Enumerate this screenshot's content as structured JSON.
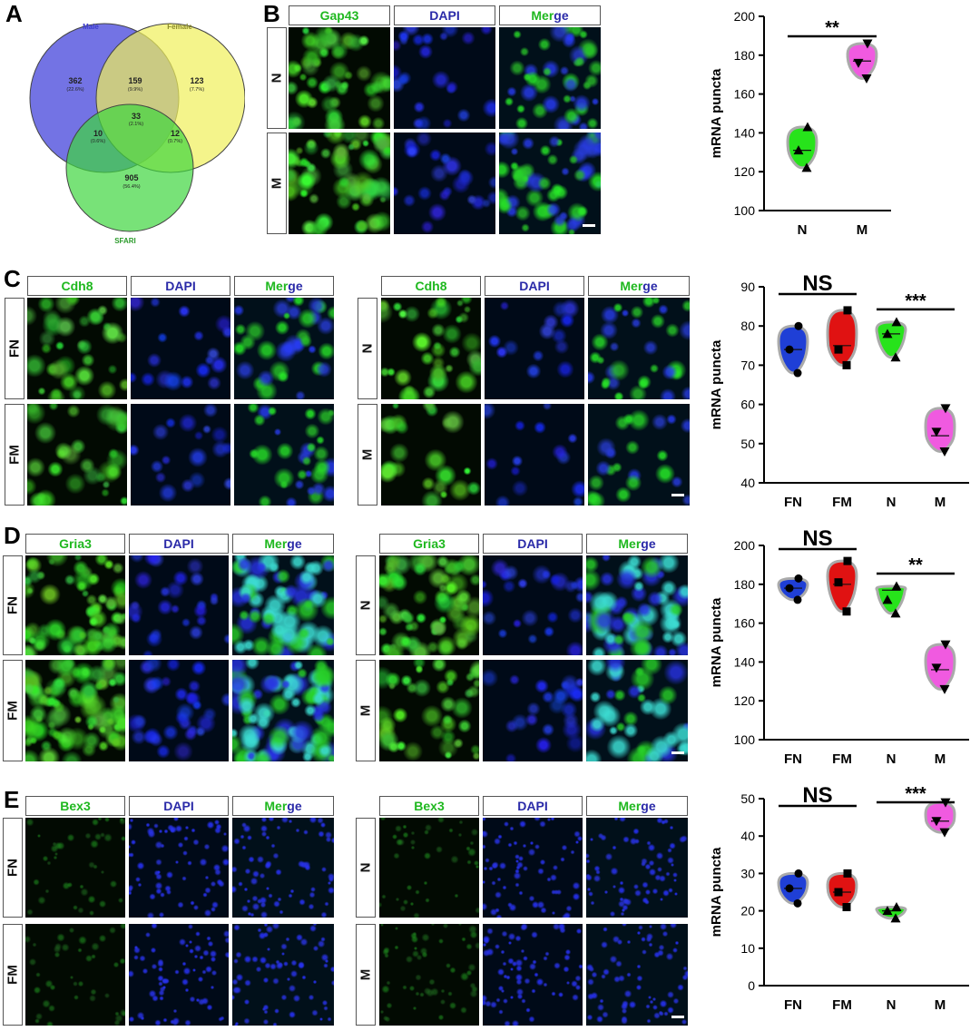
{
  "panels": {
    "A": {
      "letter": "A"
    },
    "B": {
      "letter": "B"
    },
    "C": {
      "letter": "C"
    },
    "D": {
      "letter": "D"
    },
    "E": {
      "letter": "E"
    }
  },
  "venn": {
    "male_label": "Male",
    "female_label": "Female",
    "sfari_label": "SFARI",
    "regions": [
      {
        "count": "362",
        "pct": "(22.6%)"
      },
      {
        "count": "159",
        "pct": "(9.9%)"
      },
      {
        "count": "123",
        "pct": "(7.7%)"
      },
      {
        "count": "33",
        "pct": "(2.1%)"
      },
      {
        "count": "10",
        "pct": "(0.6%)"
      },
      {
        "count": "12",
        "pct": "(0.7%)"
      },
      {
        "count": "905",
        "pct": "(56.4%)"
      }
    ],
    "colors": {
      "male": "#5a5adf",
      "female": "#f0ef5a",
      "sfari": "#3fd63f"
    }
  },
  "channels": {
    "dapi": "DAPI",
    "merge_a": "Mer",
    "merge_b": "ge"
  },
  "genes": {
    "gap43": "Gap43",
    "cdh8": "Cdh8",
    "gria3": "Gria3",
    "bex3": "Bex3"
  },
  "groups": {
    "N": "N",
    "M": "M",
    "FN": "FN",
    "FM": "FM"
  },
  "colors": {
    "FN": "#1f3fd6",
    "FM": "#e01212",
    "N": "#27e31b",
    "M": "#f05ae0",
    "green": "#1fb81f",
    "blue": "#2a2aa8"
  },
  "chart_data": [
    {
      "type": "violin",
      "panel": "B",
      "categories": [
        "N",
        "M"
      ],
      "ylabel": "mRNA puncta",
      "ylim": [
        100,
        200
      ],
      "yticks": [
        100,
        120,
        140,
        160,
        180,
        200
      ],
      "series": [
        {
          "group": "N",
          "values": [
            122,
            131,
            143
          ],
          "median": 131
        },
        {
          "group": "M",
          "values": [
            168,
            176,
            186
          ],
          "median": 177
        }
      ],
      "annotations": [
        {
          "text": "**",
          "from": "N",
          "to": "M"
        }
      ]
    },
    {
      "type": "violin",
      "panel": "C",
      "categories": [
        "FN",
        "FM",
        "N",
        "M"
      ],
      "ylabel": "mRNA puncta",
      "ylim": [
        40,
        90
      ],
      "yticks": [
        40,
        50,
        60,
        70,
        80,
        90
      ],
      "series": [
        {
          "group": "FN",
          "values": [
            68,
            74,
            80
          ],
          "median": 74
        },
        {
          "group": "FM",
          "values": [
            70,
            74,
            84
          ],
          "median": 75
        },
        {
          "group": "N",
          "values": [
            72,
            78,
            81
          ],
          "median": 78
        },
        {
          "group": "M",
          "values": [
            48,
            53,
            59
          ],
          "median": 52
        }
      ],
      "annotations": [
        {
          "text": "NS",
          "from": "FN",
          "to": "FM"
        },
        {
          "text": "***",
          "from": "N",
          "to": "M"
        }
      ]
    },
    {
      "type": "violin",
      "panel": "D",
      "categories": [
        "FN",
        "FM",
        "N",
        "M"
      ],
      "ylabel": "mRNA puncta",
      "ylim": [
        100,
        200
      ],
      "yticks": [
        100,
        120,
        140,
        160,
        180,
        200
      ],
      "series": [
        {
          "group": "FN",
          "values": [
            172,
            178,
            183
          ],
          "median": 178
        },
        {
          "group": "FM",
          "values": [
            166,
            181,
            192
          ],
          "median": 180
        },
        {
          "group": "N",
          "values": [
            165,
            172,
            179
          ],
          "median": 177
        },
        {
          "group": "M",
          "values": [
            126,
            137,
            149
          ],
          "median": 136
        }
      ],
      "annotations": [
        {
          "text": "NS",
          "from": "FN",
          "to": "FM"
        },
        {
          "text": "**",
          "from": "N",
          "to": "M"
        }
      ]
    },
    {
      "type": "violin",
      "panel": "E",
      "categories": [
        "FN",
        "FM",
        "N",
        "M"
      ],
      "ylabel": "mRNA puncta",
      "ylim": [
        0,
        50
      ],
      "yticks": [
        0,
        10,
        20,
        30,
        40,
        50
      ],
      "series": [
        {
          "group": "FN",
          "values": [
            22,
            26,
            30
          ],
          "median": 26
        },
        {
          "group": "FM",
          "values": [
            21,
            25,
            30
          ],
          "median": 25
        },
        {
          "group": "N",
          "values": [
            18,
            20,
            21
          ],
          "median": 20
        },
        {
          "group": "M",
          "values": [
            41,
            44,
            49
          ],
          "median": 44
        }
      ],
      "annotations": [
        {
          "text": "NS",
          "from": "FN",
          "to": "FM"
        },
        {
          "text": "***",
          "from": "N",
          "to": "M"
        }
      ]
    }
  ]
}
